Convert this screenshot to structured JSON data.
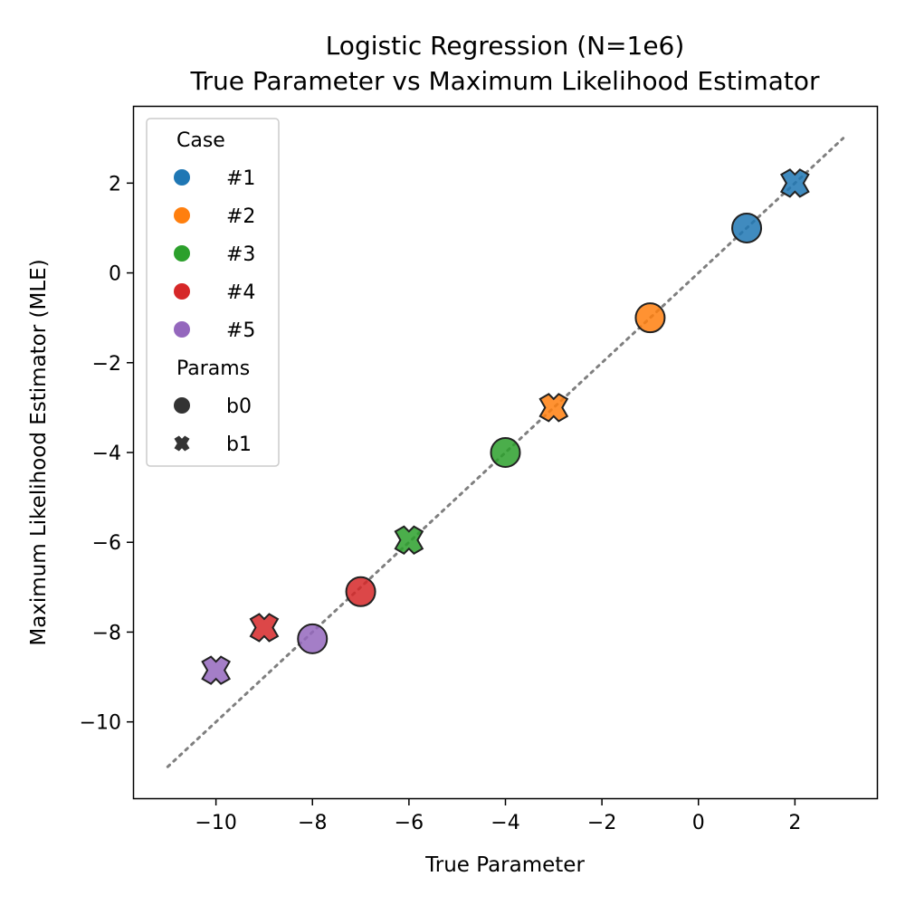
{
  "chart_data": {
    "type": "scatter",
    "title": "Logistic Regression (N=1e6)",
    "subtitle": "True Parameter vs Maximum Likelihood Estimator",
    "xlabel": "True Parameter",
    "ylabel": "Maximum Likelihood Estimator (MLE)",
    "xlim": [
      -11.7,
      3.7
    ],
    "ylim": [
      -11.7,
      3.7
    ],
    "xticks": [
      -10,
      -8,
      -6,
      -4,
      -2,
      0,
      2
    ],
    "yticks": [
      -10,
      -8,
      -6,
      -4,
      -2,
      0,
      2
    ],
    "xtick_labels": [
      "−10",
      "−8",
      "−6",
      "−4",
      "−2",
      "0",
      "2"
    ],
    "ytick_labels": [
      "−10",
      "−8",
      "−6",
      "−4",
      "−2",
      "0",
      "2"
    ],
    "grid": false,
    "reference_line": {
      "from": [
        -11,
        -11
      ],
      "to": [
        3,
        3
      ],
      "style": "dotted",
      "color": "#7f7f7f"
    },
    "legend": {
      "placement": "top-left",
      "hue_title": "Case",
      "style_title": "Params",
      "cases": [
        {
          "label": "#1",
          "color": "#1f77b4"
        },
        {
          "label": "#2",
          "color": "#ff7f0e"
        },
        {
          "label": "#3",
          "color": "#2ca02c"
        },
        {
          "label": "#4",
          "color": "#d62728"
        },
        {
          "label": "#5",
          "color": "#9467bd"
        }
      ],
      "params": [
        {
          "label": "b0",
          "marker": "circle"
        },
        {
          "label": "b1",
          "marker": "x"
        }
      ]
    },
    "points": [
      {
        "case": "#1",
        "param": "b0",
        "x": 1,
        "y": 1.0
      },
      {
        "case": "#1",
        "param": "b1",
        "x": 2,
        "y": 2.0
      },
      {
        "case": "#2",
        "param": "b0",
        "x": -1,
        "y": -1.0
      },
      {
        "case": "#2",
        "param": "b1",
        "x": -3,
        "y": -3.0
      },
      {
        "case": "#3",
        "param": "b0",
        "x": -4,
        "y": -4.0
      },
      {
        "case": "#3",
        "param": "b1",
        "x": -6,
        "y": -5.95
      },
      {
        "case": "#4",
        "param": "b0",
        "x": -7,
        "y": -7.1
      },
      {
        "case": "#4",
        "param": "b1",
        "x": -9,
        "y": -7.9
      },
      {
        "case": "#5",
        "param": "b0",
        "x": -8,
        "y": -8.15
      },
      {
        "case": "#5",
        "param": "b1",
        "x": -10,
        "y": -8.85
      }
    ]
  }
}
